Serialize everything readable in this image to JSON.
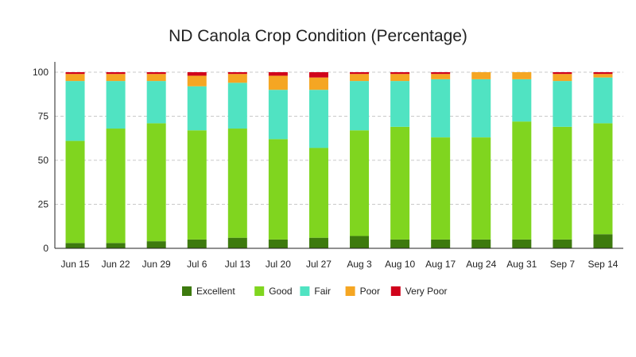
{
  "chart_data": {
    "type": "bar",
    "stacked": true,
    "title": "ND Canola Crop Condition (Percentage)",
    "xlabel": "",
    "ylabel": "",
    "ylim": [
      0,
      100
    ],
    "yticks": [
      0,
      25,
      50,
      75,
      100
    ],
    "grid": "horizontal-dashed",
    "legend_position": "bottom",
    "categories": [
      "Jun 15",
      "Jun 22",
      "Jun 29",
      "Jul 6",
      "Jul 13",
      "Jul 20",
      "Jul 27",
      "Aug 3",
      "Aug 10",
      "Aug 17",
      "Aug 24",
      "Aug 31",
      "Sep 7",
      "Sep 14"
    ],
    "series": [
      {
        "name": "Excellent",
        "color": "#3d7a0e",
        "values": [
          3,
          3,
          4,
          5,
          6,
          5,
          6,
          7,
          5,
          5,
          5,
          5,
          5,
          8
        ]
      },
      {
        "name": "Good",
        "color": "#80d51f",
        "values": [
          58,
          65,
          67,
          62,
          62,
          57,
          51,
          60,
          64,
          58,
          58,
          67,
          64,
          63
        ]
      },
      {
        "name": "Fair",
        "color": "#50e3c2",
        "values": [
          34,
          27,
          24,
          25,
          26,
          28,
          33,
          28,
          26,
          33,
          33,
          24,
          26,
          26
        ]
      },
      {
        "name": "Poor",
        "color": "#f5a623",
        "values": [
          4,
          4,
          4,
          6,
          5,
          8,
          7,
          4,
          4,
          3,
          4,
          4,
          4,
          2
        ]
      },
      {
        "name": "Very Poor",
        "color": "#d0021b",
        "values": [
          1,
          1,
          1,
          2,
          1,
          2,
          3,
          1,
          1,
          1,
          0,
          0,
          1,
          1
        ]
      }
    ]
  }
}
